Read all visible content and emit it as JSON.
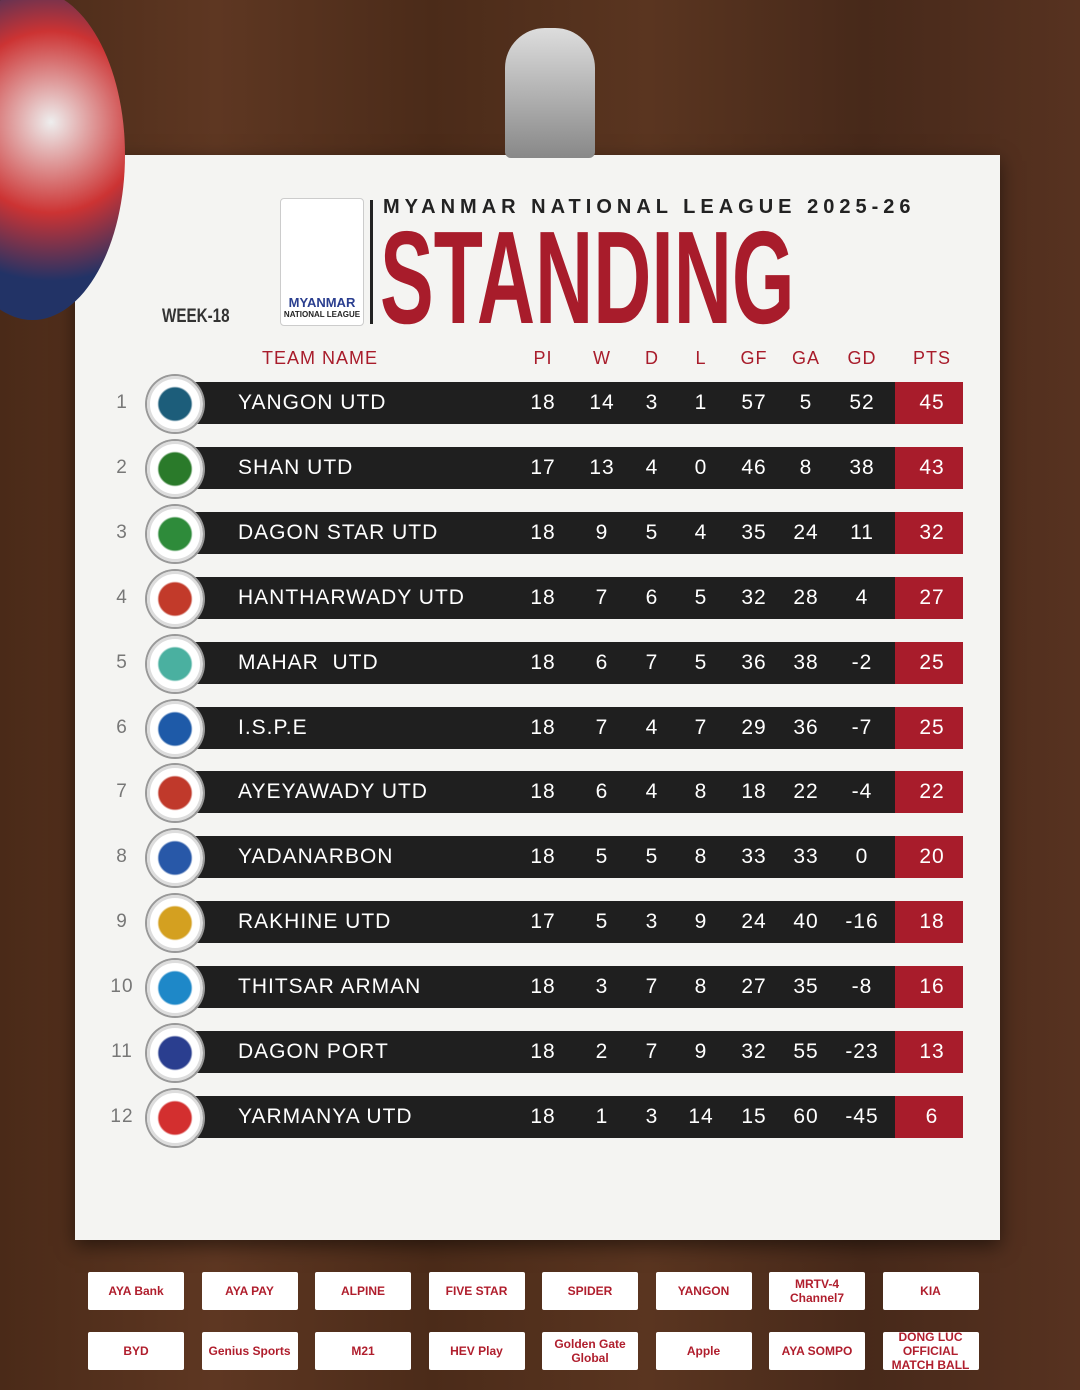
{
  "header": {
    "league": "MYANMAR NATIONAL LEAGUE 2025-26",
    "title": "STANDING",
    "week": "WEEK-18",
    "logo": {
      "name": "MYANMAR",
      "sub": "NATIONAL LEAGUE"
    }
  },
  "table": {
    "columns": [
      "TEAM NAME",
      "PI",
      "W",
      "D",
      "L",
      "GF",
      "GA",
      "GD",
      "PTS"
    ],
    "rows": [
      [
        1,
        "YANGON UTD",
        18,
        14,
        3,
        1,
        57,
        5,
        52,
        45
      ],
      [
        2,
        "SHAN UTD",
        17,
        13,
        4,
        0,
        46,
        8,
        38,
        43
      ],
      [
        3,
        "DAGON STAR UTD",
        18,
        9,
        5,
        4,
        35,
        24,
        11,
        32
      ],
      [
        4,
        "HANTHARWADY UTD",
        18,
        7,
        6,
        5,
        32,
        28,
        4,
        27
      ],
      [
        5,
        "MAHAR  UTD",
        18,
        6,
        7,
        5,
        36,
        38,
        -2,
        25
      ],
      [
        6,
        "I.S.P.E",
        18,
        7,
        4,
        7,
        29,
        36,
        -7,
        25
      ],
      [
        7,
        "AYEYAWADY UTD",
        18,
        6,
        4,
        8,
        18,
        22,
        -4,
        22
      ],
      [
        8,
        "YADANARBON",
        18,
        5,
        5,
        8,
        33,
        33,
        0,
        20
      ],
      [
        9,
        "RAKHINE UTD",
        17,
        5,
        3,
        9,
        24,
        40,
        -16,
        18
      ],
      [
        10,
        "THITSAR ARMAN",
        18,
        3,
        7,
        8,
        27,
        35,
        -8,
        16
      ],
      [
        11,
        "DAGON PORT",
        18,
        2,
        7,
        9,
        32,
        55,
        -23,
        13
      ],
      [
        12,
        "YARMANYA UTD",
        18,
        1,
        3,
        14,
        15,
        60,
        -45,
        6
      ]
    ]
  },
  "sponsors": [
    "AYA Bank",
    "AYA PAY",
    "ALPINE",
    "FIVE STAR",
    "SPIDER",
    "YANGON",
    "MRTV-4 Channel7",
    "KIA",
    "BYD",
    "Genius Sports",
    "M21",
    "HEV Play",
    "Golden Gate Global",
    "Apple",
    "AYA SOMPO",
    "DONG LUC OFFICIAL MATCH BALL"
  ]
}
